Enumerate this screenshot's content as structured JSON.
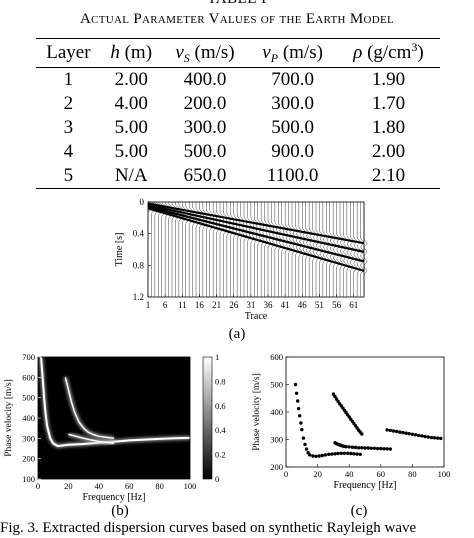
{
  "table": {
    "label": "TABLE I",
    "caption": "Actual Parameter Values of the Earth Model",
    "headers": {
      "layer": "Layer",
      "h_sym": "h",
      "h_unit": " (m)",
      "vs_sym": "v",
      "vs_sub": "S",
      "vs_unit": " (m/s)",
      "vp_sym": "v",
      "vp_sub": "P",
      "vp_unit": " (m/s)",
      "rho_sym": "ρ",
      "rho_unit": " (g/cm",
      "rho_exp": "3",
      "rho_close": ")"
    },
    "rows": [
      [
        "1",
        "2.00",
        "400.0",
        "700.0",
        "1.90"
      ],
      [
        "2",
        "4.00",
        "200.0",
        "300.0",
        "1.70"
      ],
      [
        "3",
        "5.00",
        "300.0",
        "500.0",
        "1.80"
      ],
      [
        "4",
        "5.00",
        "500.0",
        "900.0",
        "2.00"
      ],
      [
        "5",
        "N/A",
        "650.0",
        "1100.0",
        "2.10"
      ]
    ]
  },
  "chart_data": [
    {
      "type": "line",
      "panel": "(a)",
      "xlabel": "Trace",
      "ylabel": "Time [s]",
      "xticks": [
        "1",
        "6",
        "11",
        "16",
        "21",
        "26",
        "31",
        "36",
        "41",
        "46",
        "51",
        "56",
        "61"
      ],
      "yticks": [
        "0",
        "0.4",
        "0.8",
        "1.2"
      ],
      "xlim": [
        1,
        64
      ],
      "ylim": [
        0,
        1.2
      ],
      "traces": 64,
      "arrival_lines": [
        {
          "t0": 0.02,
          "t64": 0.52
        },
        {
          "t0": 0.04,
          "t64": 0.63
        },
        {
          "t0": 0.06,
          "t64": 0.75
        },
        {
          "t0": 0.08,
          "t64": 0.87
        }
      ]
    },
    {
      "type": "heatmap",
      "panel": "(b)",
      "xlabel": "Frequency [Hz]",
      "ylabel": "Phase velocity [m/s]",
      "xticks": [
        "0",
        "20",
        "40",
        "60",
        "80",
        "100"
      ],
      "yticks": [
        "100",
        "200",
        "300",
        "400",
        "500",
        "600",
        "700"
      ],
      "xlim": [
        0,
        100
      ],
      "ylim": [
        100,
        700
      ],
      "colorbar": {
        "ticks": [
          "0",
          "0.2",
          "0.4",
          "0.6",
          "0.8",
          "1"
        ],
        "range": [
          0,
          1
        ]
      },
      "curves": [
        {
          "x": [
            2,
            3,
            4,
            5,
            6,
            8,
            10,
            13,
            20,
            30,
            40,
            50,
            60,
            70,
            80,
            90,
            100
          ],
          "y": [
            700,
            600,
            500,
            420,
            360,
            300,
            275,
            262,
            268,
            272,
            278,
            284,
            290,
            294,
            297,
            300,
            302
          ]
        },
        {
          "x": [
            18,
            20,
            22,
            24,
            27,
            30,
            33,
            36,
            40,
            45,
            50
          ],
          "y": [
            600,
            540,
            480,
            430,
            380,
            350,
            330,
            320,
            310,
            305,
            300
          ]
        },
        {
          "x": [
            20,
            25,
            30,
            35,
            40,
            45,
            50
          ],
          "y": [
            320,
            310,
            300,
            292,
            285,
            280,
            276
          ]
        }
      ]
    },
    {
      "type": "scatter",
      "panel": "(c)",
      "xlabel": "Frequency [Hz]",
      "ylabel": "Phase velocity [m/s]",
      "xticks": [
        "0",
        "20",
        "40",
        "60",
        "80",
        "100"
      ],
      "yticks": [
        "200",
        "300",
        "400",
        "500",
        "600"
      ],
      "xlim": [
        0,
        100
      ],
      "ylim": [
        200,
        600
      ],
      "series": [
        {
          "x": [
            6,
            6.7,
            7.4,
            8,
            8.7,
            9.4,
            10,
            11,
            12,
            13,
            14,
            15,
            17,
            19,
            21,
            23,
            25,
            27,
            29,
            31,
            33,
            35,
            37,
            39,
            41,
            43,
            45,
            47
          ],
          "y": [
            500,
            468,
            440,
            412,
            386,
            360,
            336,
            305,
            282,
            265,
            252,
            244,
            240,
            239,
            240,
            242,
            244,
            246,
            247,
            248,
            249,
            250,
            250,
            250,
            249,
            248,
            247,
            246
          ]
        },
        {
          "x": [
            30,
            31,
            32,
            33,
            34,
            35,
            36,
            37,
            38,
            39,
            40,
            41,
            42,
            43,
            44,
            45,
            46,
            47,
            48
          ],
          "y": [
            465,
            456,
            447,
            438,
            430,
            422,
            414,
            406,
            398,
            390,
            382,
            374,
            366,
            358,
            350,
            342,
            334,
            327,
            320
          ]
        },
        {
          "x": [
            31,
            32,
            33,
            34,
            35,
            36,
            37,
            38,
            40,
            42,
            44,
            46,
            48,
            50,
            52,
            54,
            56,
            58,
            60,
            62,
            64,
            66
          ],
          "y": [
            288,
            285,
            282,
            280,
            278,
            276,
            275,
            274,
            273,
            272,
            271,
            270,
            270,
            269,
            269,
            268,
            268,
            267,
            267,
            266,
            266,
            265
          ]
        },
        {
          "x": [
            64,
            66,
            68,
            70,
            72,
            74,
            76,
            78,
            80,
            82,
            84,
            86,
            88,
            90,
            92,
            94,
            96,
            98
          ],
          "y": [
            335,
            333,
            331,
            329,
            327,
            325,
            323,
            321,
            319,
            317,
            315,
            313,
            311,
            309,
            307,
            306,
            305,
            304
          ]
        }
      ]
    }
  ],
  "figure": {
    "label_a": "(a)",
    "label_b": "(b)",
    "label_c": "(c)",
    "caption": "Fig. 3.   Extracted dispersion curves based on synthetic Rayleigh wave"
  }
}
